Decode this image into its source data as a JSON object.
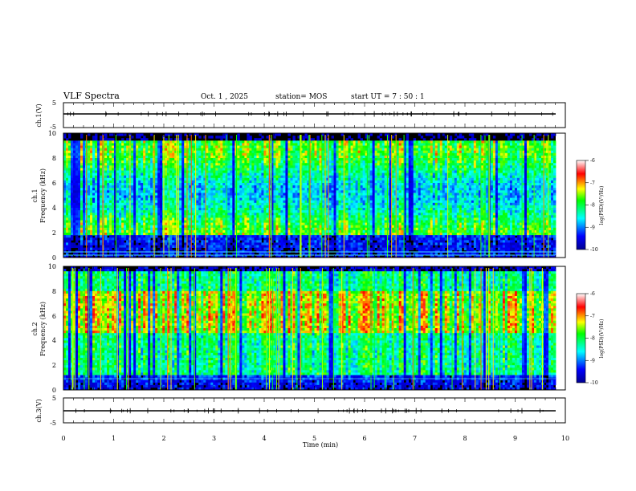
{
  "header": {
    "title": "VLF Spectra",
    "date": "Oct. 1 , 2025",
    "station": "station= MOS",
    "start_ut": "start  UT =   7 : 50 : 1"
  },
  "chart_data": [
    {
      "type": "line",
      "panel": "ch1-waveform",
      "ylabel": "ch.1(V)",
      "ylim": [
        -5,
        5
      ],
      "yticks": [
        "5",
        "-5"
      ],
      "xlim": [
        0,
        10
      ],
      "series": [
        {
          "x": [
            0,
            9.8
          ],
          "values": [
            0,
            0
          ]
        }
      ]
    },
    {
      "type": "heatmap",
      "panel": "ch1-spectrogram",
      "ylabel": [
        "ch.1",
        "Frequency  (kHz)"
      ],
      "ylim": [
        0,
        10
      ],
      "yticks": [
        "0",
        "2",
        "4",
        "6",
        "8",
        "10"
      ],
      "xlim": [
        0,
        9.8
      ],
      "colorbar": {
        "label": "log(PSD)(V²/Hz)",
        "ticks": [
          "-6",
          "-7",
          "-8",
          "-9",
          "-10"
        ],
        "range": [
          -10,
          -6
        ]
      }
    },
    {
      "type": "heatmap",
      "panel": "ch2-spectrogram",
      "ylabel": [
        "ch.2",
        "Frequency  (kHz)"
      ],
      "ylim": [
        0,
        10
      ],
      "yticks": [
        "0",
        "2",
        "4",
        "6",
        "8",
        "10"
      ],
      "xlim": [
        0,
        9.8
      ],
      "colorbar": {
        "label": "log(PSD)(V²/Hz)",
        "ticks": [
          "-6",
          "-7",
          "-8",
          "-9",
          "-10"
        ],
        "range": [
          -10,
          -6
        ]
      }
    },
    {
      "type": "line",
      "panel": "ch3-waveform",
      "ylabel": "ch.3(V)",
      "ylim": [
        -5,
        5
      ],
      "yticks": [
        "5",
        "-5"
      ],
      "xlim": [
        0,
        10
      ],
      "series": [
        {
          "x": [
            0,
            9.8
          ],
          "values": [
            0,
            0
          ]
        }
      ]
    }
  ],
  "xaxis": {
    "label": "Time  (min)",
    "ticks": [
      "0",
      "1",
      "2",
      "3",
      "4",
      "5",
      "6",
      "7",
      "8",
      "9",
      "10"
    ]
  }
}
